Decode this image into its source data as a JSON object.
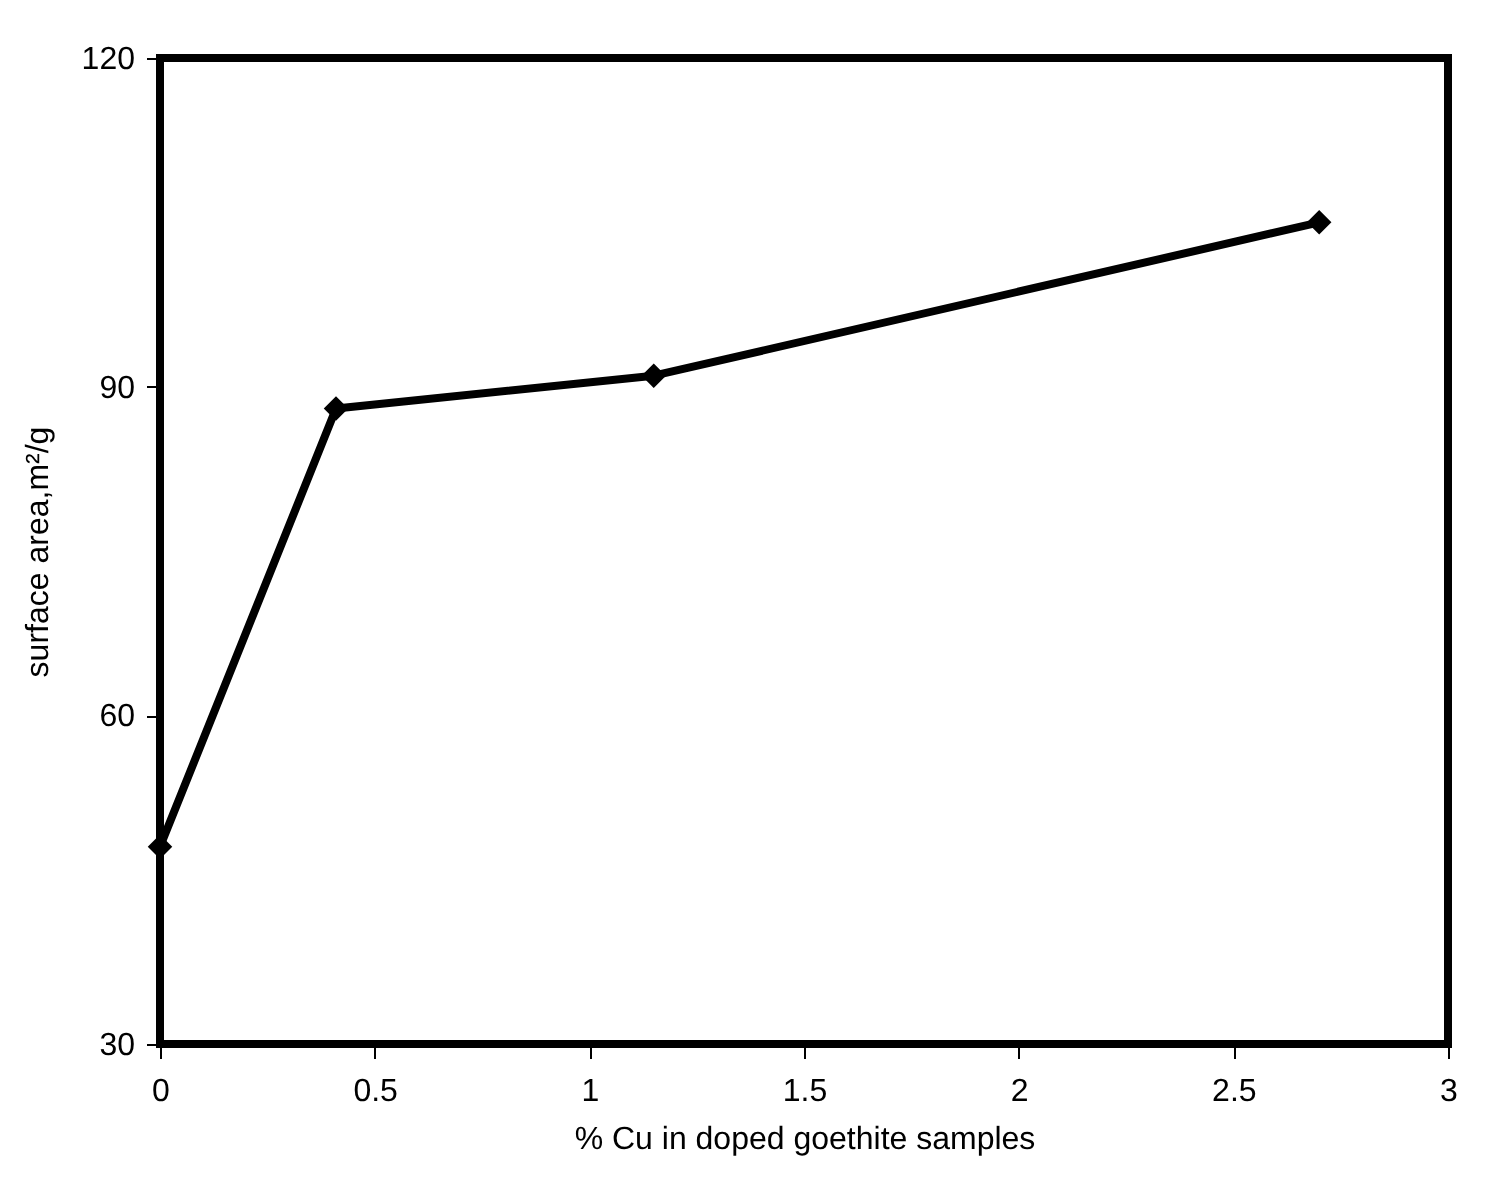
{
  "chart_data": {
    "type": "line",
    "xlabel": "% Cu in doped goethite samples",
    "ylabel": "surface area,m²/g",
    "x": [
      0,
      0.41,
      1.15,
      2.7
    ],
    "series": [
      {
        "color": "#000000",
        "values": [
          48,
          88,
          91,
          105
        ]
      }
    ],
    "xlim": [
      0,
      3
    ],
    "xticks": [
      0,
      0.5,
      1,
      1.5,
      2,
      2.5,
      3
    ],
    "ylim": [
      30,
      120
    ],
    "yticks": [
      30,
      60,
      90,
      120
    ],
    "grid": false,
    "legend": false,
    "marker": "diamond",
    "line_style": "solid"
  }
}
